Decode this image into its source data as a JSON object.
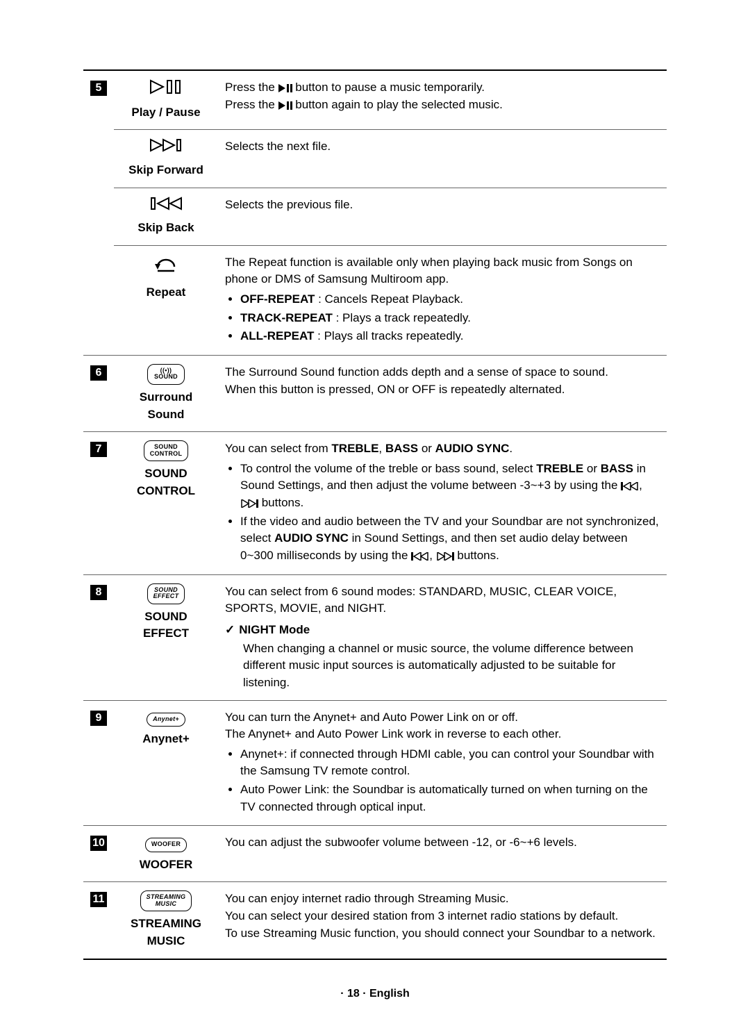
{
  "footer": "· 18 · English",
  "rows": [
    {
      "num": "5",
      "label": "Play / Pause",
      "desc_html": "Press the <svg class='inline-icon' width='20' height='12' viewBox='0 0 20 12'><polygon points='0,0 10,6 0,12' fill='#000'/><rect x='12' y='0' width='3' height='12' fill='#000'/><rect x='17' y='0' width='3' height='12' fill='#000'/></svg> button to pause a music temporarily.<br>Press the <svg class='inline-icon' width='20' height='12' viewBox='0 0 20 12'><polygon points='0,0 10,6 0,12' fill='#000'/><rect x='12' y='0' width='3' height='12' fill='#000'/><rect x='17' y='0' width='3' height='12' fill='#000'/></svg> button again to play the selected music."
    },
    {
      "label": "Skip Forward",
      "desc_html": "Selects the next file."
    },
    {
      "label": "Skip Back",
      "desc_html": "Selects the previous file."
    },
    {
      "label": "Repeat",
      "group_end": true,
      "desc_html": "The Repeat function is available only when playing back music from Songs on phone or DMS of Samsung Multiroom app.<ul class='bul'><li><b>OFF-REPEAT</b> : Cancels Repeat Playback.</li><li><b>TRACK-REPEAT</b> : Plays a track repeatedly.</li><li><b>ALL-REPEAT</b> : Plays all tracks repeatedly.</li></ul>"
    },
    {
      "num": "6",
      "label": "Surround Sound",
      "group_end": true,
      "desc_html": "The Surround Sound function adds depth and a sense of space to sound.<br>When this button is pressed, ON or OFF is repeatedly alternated."
    },
    {
      "num": "7",
      "label": "SOUND CONTROL",
      "group_end": true,
      "desc_html": "You can select from <b>TREBLE</b>, <b>BASS</b> or <b>AUDIO SYNC</b>.<ul class='bul'><li>To control the volume of the treble or bass sound, select <b>TREBLE</b> or <b>BASS</b> in Sound Settings, and then adjust the volume between -3~+3 by using the <svg class='inline-icon' width='26' height='12' viewBox='0 0 26 12'><rect x='0' y='0' width='3' height='12' fill='#000'/><polygon points='14,0 4,6 14,12' fill='none' stroke='#000' stroke-width='1.5'/><polygon points='24,0 14,6 24,12' fill='none' stroke='#000' stroke-width='1.5'/></svg>, <svg class='inline-icon' width='26' height='12' viewBox='0 0 26 12'><polygon points='2,0 12,6 2,12' fill='none' stroke='#000' stroke-width='1.5'/><polygon points='12,0 22,6 12,12' fill='none' stroke='#000' stroke-width='1.5'/><rect x='23' y='0' width='3' height='12' fill='#000'/></svg> buttons.</li><li>If the video and audio between the TV and your Soundbar are not synchronized, select <b>AUDIO SYNC</b> in Sound Settings, and then set audio delay between 0~300 milliseconds by using the <svg class='inline-icon' width='26' height='12' viewBox='0 0 26 12'><rect x='0' y='0' width='3' height='12' fill='#000'/><polygon points='14,0 4,6 14,12' fill='none' stroke='#000' stroke-width='1.5'/><polygon points='24,0 14,6 24,12' fill='none' stroke='#000' stroke-width='1.5'/></svg>, <svg class='inline-icon' width='26' height='12' viewBox='0 0 26 12'><polygon points='2,0 12,6 2,12' fill='none' stroke='#000' stroke-width='1.5'/><polygon points='12,0 22,6 12,12' fill='none' stroke='#000' stroke-width='1.5'/><rect x='23' y='0' width='3' height='12' fill='#000'/></svg> buttons.</li></ul>"
    },
    {
      "num": "8",
      "label": "SOUND EFFECT",
      "group_end": true,
      "desc_html": "You can select from 6 sound modes: STANDARD, MUSIC, CLEAR VOICE, SPORTS, MOVIE, and NIGHT.<div class='check-row'><span class='check-mark'>&#10003;</span><b>NIGHT Mode</b></div><div class='indent'>When changing a channel or music source, the volume difference between different music input sources is automatically adjusted to be suitable for listening.</div>"
    },
    {
      "num": "9",
      "label": "Anynet+",
      "group_end": true,
      "desc_html": "You can turn the Anynet+ and Auto Power Link on or off.<br>The Anynet+ and Auto Power Link work in reverse to each other.<ul class='bul'><li>Anynet+: if connected through HDMI cable, you can control your Soundbar with the Samsung TV remote control.</li><li>Auto Power Link: the Soundbar is automatically turned on when turning on the TV connected through optical input.</li></ul>"
    },
    {
      "num": "10",
      "label": "WOOFER",
      "group_end": true,
      "desc_html": "You can adjust the subwoofer volume between -12, or -6~+6 levels."
    },
    {
      "num": "11",
      "label": "STREAMING MUSIC",
      "group_end": true,
      "desc_html": "You can enjoy internet radio through Streaming Music.<br>You can select your desired station from 3 internet radio stations by default.<br>To use Streaming Music function, you should connect your Soundbar to a network."
    }
  ],
  "icons": {
    "play_pause": "play-pause",
    "skip_forward": "skip-forward",
    "skip_back": "skip-back",
    "repeat": "repeat",
    "surround": "surround-btn",
    "sound_control": "sound-control-btn",
    "sound_effect": "sound-effect-btn",
    "anynet": "anynet-btn",
    "woofer": "woofer-btn",
    "streaming": "streaming-btn"
  }
}
